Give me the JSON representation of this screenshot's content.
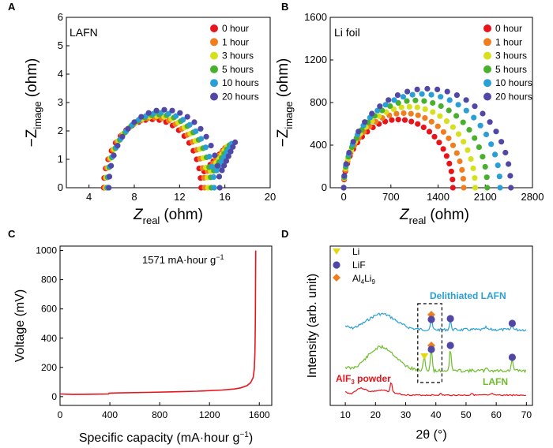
{
  "colors": {
    "h0": "#e8141c",
    "h1": "#f07d1e",
    "h3": "#d6e01c",
    "h5": "#49b02e",
    "h10": "#2a9fd6",
    "h20": "#5148a6",
    "voltage_line": "#e8141c",
    "xrd_delithiated": "#2a9fd6",
    "xrd_lafn": "#6bbd2b",
    "xrd_alf3": "#e8141c",
    "marker_li": "#e3d70f",
    "marker_lif": "#5148a6",
    "marker_al4li9": "#f07d1e"
  },
  "panels": {
    "A": {
      "letter": "A",
      "sample_label": "LAFN",
      "xlabel_main": "Z",
      "xlabel_sub": "real",
      "xlabel_unit": "(ohm)",
      "ylabel_main": "−Z",
      "ylabel_sub": "image",
      "ylabel_unit": "(ohm)"
    },
    "B": {
      "letter": "B",
      "sample_label": "Li foil",
      "xlabel_main": "Z",
      "xlabel_sub": "real",
      "xlabel_unit": "(ohm)",
      "ylabel_main": "−Z",
      "ylabel_sub": "image",
      "ylabel_unit": "(ohm)"
    },
    "C": {
      "letter": "C",
      "annotation_main": "1571 mA·hour g",
      "annotation_sup": "−1",
      "xlabel_main": "Specific capacity (mA·hour g",
      "xlabel_sup": "−1",
      "xlabel_end": ")",
      "ylabel": "Voltage (mV)"
    },
    "D": {
      "letter": "D",
      "xlabel": "2θ (°)",
      "ylabel": "Intensity (arb. unit)",
      "legend": {
        "li": "Li",
        "lif": "LiF",
        "al4li9_1": "Al",
        "al4li9_2": "4",
        "al4li9_3": "Li",
        "al4li9_4": "9"
      },
      "trace_labels": {
        "delithiated": "Delithiated LAFN",
        "lafn": "LAFN",
        "alf3_main": "AlF",
        "alf3_sub": "3",
        "alf3_end": " powder"
      }
    }
  },
  "chart_data": [
    {
      "panel": "A",
      "type": "scatter",
      "xlim": [
        2,
        20
      ],
      "ylim": [
        0,
        6
      ],
      "xticks": [
        4,
        8,
        12,
        16,
        20
      ],
      "yticks": [
        0,
        1,
        2,
        3,
        4,
        5,
        6
      ],
      "legend_placement": "top-right",
      "series": [
        {
          "name": "0 hour",
          "color_key": "h0",
          "x0": 5.3,
          "r": 4.3,
          "tail_end": 15.8,
          "tail_top": 1.3
        },
        {
          "name": "1 hour",
          "color_key": "h1",
          "x0": 5.4,
          "r": 4.4,
          "tail_end": 16.0,
          "tail_top": 1.4
        },
        {
          "name": "3 hours",
          "color_key": "h3",
          "x0": 5.5,
          "r": 4.5,
          "tail_end": 16.2,
          "tail_top": 1.45
        },
        {
          "name": "5 hours",
          "color_key": "h5",
          "x0": 5.6,
          "r": 4.6,
          "tail_end": 16.4,
          "tail_top": 1.5
        },
        {
          "name": "10 hours",
          "color_key": "h10",
          "x0": 5.65,
          "r": 4.7,
          "tail_end": 16.6,
          "tail_top": 1.55
        },
        {
          "name": "20 hours",
          "color_key": "h20",
          "x0": 5.75,
          "r": 4.9,
          "tail_end": 16.9,
          "tail_top": 1.6
        }
      ]
    },
    {
      "panel": "B",
      "type": "scatter",
      "xlim": [
        -200,
        2800
      ],
      "ylim": [
        0,
        1600
      ],
      "xticks": [
        0,
        700,
        1400,
        2100,
        2800
      ],
      "yticks": [
        0,
        400,
        800,
        1200,
        1600
      ],
      "legend_placement": "top-right",
      "series": [
        {
          "name": "0 hour",
          "color_key": "h0",
          "x0": 0,
          "x1": 1620,
          "peak": 640
        },
        {
          "name": "1 hour",
          "color_key": "h1",
          "x0": 0,
          "x1": 1780,
          "peak": 700
        },
        {
          "name": "3 hours",
          "color_key": "h3",
          "x0": 0,
          "x1": 1950,
          "peak": 760
        },
        {
          "name": "5 hours",
          "color_key": "h5",
          "x0": 0,
          "x1": 2130,
          "peak": 820
        },
        {
          "name": "10 hours",
          "color_key": "h10",
          "x0": 0,
          "x1": 2320,
          "peak": 880
        },
        {
          "name": "20 hours",
          "color_key": "h20",
          "x0": 0,
          "x1": 2480,
          "peak": 930
        }
      ]
    },
    {
      "panel": "C",
      "type": "line",
      "xlim": [
        0,
        1700
      ],
      "ylim": [
        -60,
        1030
      ],
      "xticks": [
        0,
        400,
        800,
        1200,
        1600
      ],
      "yticks": [
        0,
        200,
        400,
        600,
        800,
        1000
      ],
      "x": [
        0,
        100,
        200,
        300,
        390,
        395,
        500,
        700,
        900,
        1100,
        1300,
        1400,
        1450,
        1500,
        1530,
        1550,
        1560,
        1565,
        1568,
        1570,
        1571
      ],
      "y": [
        18,
        15,
        16,
        17,
        18,
        24,
        26,
        29,
        33,
        37,
        45,
        52,
        60,
        75,
        95,
        130,
        190,
        300,
        500,
        800,
        1000
      ]
    },
    {
      "panel": "D",
      "type": "line",
      "xlim": [
        5,
        72
      ],
      "xticks": [
        10,
        20,
        30,
        40,
        50,
        60,
        70
      ],
      "series": [
        {
          "name": "Delithiated LAFN",
          "color_key": "xrd_delithiated"
        },
        {
          "name": "LAFN",
          "color_key": "xrd_lafn"
        },
        {
          "name": "AlF3 powder",
          "color_key": "xrd_alf3"
        }
      ],
      "peaks": {
        "delithiated": [
          {
            "x": 38.5,
            "marker": "al4li9"
          },
          {
            "x": 38.5,
            "marker": "lif"
          },
          {
            "x": 44.8,
            "marker": "lif"
          },
          {
            "x": 65.3,
            "marker": "lif"
          }
        ],
        "lafn": [
          {
            "x": 36.2,
            "marker": "li"
          },
          {
            "x": 38.5,
            "marker": "al4li9"
          },
          {
            "x": 38.5,
            "marker": "lif"
          },
          {
            "x": 44.8,
            "marker": "lif"
          },
          {
            "x": 65.3,
            "marker": "lif"
          }
        ]
      },
      "highlight_box_2theta": [
        34,
        42
      ]
    }
  ]
}
